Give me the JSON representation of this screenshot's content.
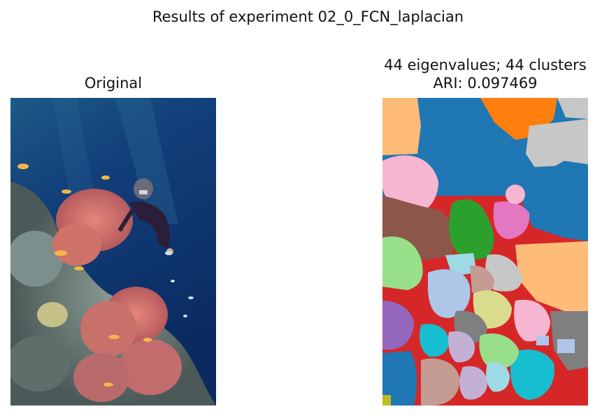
{
  "figure": {
    "suptitle": "Results of experiment 02_0_FCN_laplacian"
  },
  "left_panel": {
    "title": "Original",
    "image": "underwater-photo-diver-and-soft-coral"
  },
  "right_panel": {
    "title_line1": "44 eigenvalues; 44 clusters",
    "title_line2": "ARI: 0.097469",
    "image": "cluster-segmentation-map"
  },
  "palette": {
    "blue": "#1f77b4",
    "orange": "#ff7f0e",
    "green": "#2ca02c",
    "red": "#d62728",
    "purple": "#9467bd",
    "brown": "#8c564b",
    "pink": "#e377c2",
    "gray": "#7f7f7f",
    "olive": "#bcbd22",
    "cyan": "#17becf",
    "light_blue": "#aec7e8",
    "light_orange": "#ffbb78",
    "light_green": "#98df8a",
    "light_red": "#ff9896",
    "light_purple": "#c5b0d5",
    "light_brown": "#c49c94",
    "light_pink": "#f7b6d2",
    "light_gray": "#c7c7c7",
    "light_olive": "#dbdb8d",
    "light_cyan": "#9edae5"
  }
}
